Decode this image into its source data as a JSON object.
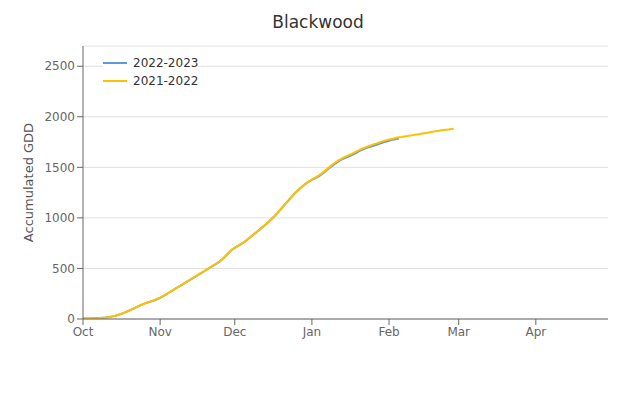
{
  "chart_data": {
    "type": "line",
    "title": "Blackwood",
    "y_label": "Accumulated GDD",
    "x": [
      0,
      1,
      2,
      3,
      4,
      5,
      6,
      7,
      8,
      9,
      10,
      11,
      12,
      13,
      14,
      15,
      16,
      17,
      18,
      19,
      20,
      21,
      22,
      23,
      24,
      25,
      26,
      27,
      28,
      29,
      30,
      31,
      32,
      33,
      34,
      35,
      36,
      37,
      38,
      39,
      40,
      41,
      42,
      43,
      44,
      45,
      46,
      47,
      48,
      49,
      50,
      51,
      52,
      53,
      54,
      55,
      56,
      57,
      58,
      59,
      60,
      61,
      62,
      63,
      64,
      65,
      66,
      67,
      68,
      69,
      70,
      71,
      72,
      73,
      74,
      75,
      76,
      77,
      78,
      79,
      80,
      81,
      82,
      83,
      84,
      85,
      86,
      87,
      88,
      89,
      90,
      91,
      92,
      93,
      94,
      95,
      96,
      97,
      98,
      99,
      100,
      101,
      102,
      103,
      104,
      105,
      106,
      107,
      108,
      109,
      110,
      111,
      112,
      113,
      114,
      115,
      116,
      117,
      118,
      119,
      120,
      121,
      122,
      123,
      124,
      125,
      126,
      127,
      128,
      129,
      130,
      131,
      132,
      133,
      134,
      135,
      136,
      137,
      138,
      139,
      140,
      141,
      142,
      143,
      144,
      145,
      146,
      147,
      148,
      149,
      150,
      151,
      152,
      153,
      154,
      155,
      156,
      157,
      158,
      159,
      160,
      161,
      162,
      163,
      164,
      165,
      166,
      167,
      168,
      169,
      170,
      171,
      172,
      173,
      174,
      175,
      176,
      177,
      178,
      179,
      180,
      181,
      182,
      183,
      184,
      185,
      186,
      187,
      188,
      189,
      190,
      191,
      192,
      193,
      194,
      195,
      196,
      197,
      198,
      199,
      200,
      201,
      202,
      203,
      204,
      205,
      206,
      207,
      208,
      209,
      210,
      211
    ],
    "xlim": [
      0,
      211
    ],
    "xticks": [
      {
        "value": 0,
        "label": "Oct"
      },
      {
        "value": 31,
        "label": "Nov"
      },
      {
        "value": 61,
        "label": "Dec"
      },
      {
        "value": 92,
        "label": "Jan"
      },
      {
        "value": 123,
        "label": "Feb"
      },
      {
        "value": 151,
        "label": "Mar"
      },
      {
        "value": 182,
        "label": "Apr"
      }
    ],
    "ylim": [
      0,
      2700
    ],
    "yticks": [
      0,
      500,
      1000,
      1500,
      2000,
      2500
    ],
    "grid": true,
    "legend": "upper left",
    "series": [
      {
        "name": "2022-2023",
        "color": "#5b9bd5",
        "values": [
          5,
          5,
          6,
          6,
          7,
          8,
          9,
          10,
          12,
          14,
          17,
          21,
          26,
          32,
          39,
          47,
          56,
          66,
          77,
          88,
          99,
          111,
          123,
          135,
          145,
          155,
          163,
          171,
          179,
          188,
          198,
          210,
          223,
          237,
          252,
          267,
          282,
          297,
          312,
          327,
          342,
          357,
          372,
          387,
          402,
          417,
          432,
          447,
          462,
          477,
          493,
          508,
          523,
          538,
          553,
          570,
          590,
          615,
          640,
          665,
          688,
          703,
          718,
          733,
          748,
          764,
          784,
          804,
          824,
          844,
          864,
          884,
          905,
          926,
          948,
          970,
          994,
          1018,
          1044,
          1072,
          1100,
          1128,
          1156,
          1184,
          1212,
          1240,
          1263,
          1286,
          1307,
          1328,
          1346,
          1362,
          1376,
          1389,
          1401,
          1415,
          1432,
          1452,
          1473,
          1494,
          1512,
          1530,
          1547,
          1563,
          1578,
          1590,
          1600,
          1610,
          1620,
          1632,
          1646,
          1660,
          1672,
          1682,
          1692,
          1700,
          1708,
          1716,
          1724,
          1733,
          1741,
          1749,
          1756,
          1763,
          1769,
          1774,
          1779,
          1784,
          null,
          null,
          null,
          null,
          null,
          null,
          null,
          null,
          null,
          null,
          null,
          null,
          null,
          null,
          null,
          null,
          null,
          null,
          null,
          null,
          null,
          null,
          null,
          null,
          null,
          null,
          null,
          null,
          null,
          null,
          null,
          null,
          null,
          null,
          null,
          null,
          null,
          null,
          null,
          null,
          null,
          null,
          null,
          null,
          null,
          null,
          null,
          null,
          null,
          null,
          null,
          null,
          null,
          null,
          null,
          null,
          null,
          null,
          null,
          null,
          null,
          null,
          null,
          null,
          null,
          null,
          null,
          null,
          null,
          null,
          null,
          null,
          null,
          null,
          null,
          null,
          null,
          null,
          null,
          null,
          null,
          null,
          null,
          null
        ]
      },
      {
        "name": "2021-2022",
        "color": "#ffc000",
        "values": [
          5,
          5,
          6,
          6,
          7,
          8,
          9,
          11,
          13,
          15,
          18,
          22,
          27,
          33,
          40,
          48,
          57,
          67,
          78,
          89,
          100,
          112,
          124,
          136,
          146,
          156,
          164,
          172,
          180,
          189,
          199,
          211,
          224,
          238,
          253,
          268,
          283,
          298,
          313,
          328,
          343,
          358,
          373,
          388,
          403,
          418,
          433,
          448,
          463,
          478,
          494,
          509,
          524,
          539,
          554,
          571,
          591,
          616,
          641,
          666,
          689,
          704,
          719,
          734,
          749,
          765,
          785,
          805,
          825,
          845,
          865,
          885,
          906,
          927,
          949,
          971,
          995,
          1019,
          1045,
          1073,
          1101,
          1129,
          1157,
          1185,
          1213,
          1241,
          1264,
          1287,
          1308,
          1329,
          1348,
          1365,
          1380,
          1394,
          1408,
          1423,
          1440,
          1460,
          1480,
          1502,
          1522,
          1540,
          1557,
          1573,
          1587,
          1600,
          1611,
          1622,
          1633,
          1645,
          1658,
          1670,
          1682,
          1692,
          1702,
          1711,
          1720,
          1729,
          1737,
          1746,
          1754,
          1762,
          1769,
          1775,
          1781,
          1786,
          1792,
          1797,
          1800,
          1804,
          1808,
          1812,
          1816,
          1820,
          1824,
          1828,
          1832,
          1836,
          1840,
          1844,
          1849,
          1854,
          1858,
          1862,
          1866,
          1869,
          1872,
          1875,
          1878,
          1881,
          null,
          null,
          null,
          null,
          null,
          null,
          null,
          null,
          null,
          null,
          null,
          null,
          null,
          null,
          null,
          null,
          null,
          null,
          null,
          null,
          null,
          null,
          null,
          null,
          null,
          null,
          null,
          null,
          null,
          null,
          null,
          null,
          null,
          null,
          null,
          null,
          null,
          null,
          null,
          null,
          null,
          null,
          null,
          null,
          null,
          null,
          null,
          null,
          null,
          null,
          null,
          null,
          null,
          null,
          null,
          null,
          null,
          null,
          null,
          null,
          null,
          null
        ]
      }
    ]
  }
}
